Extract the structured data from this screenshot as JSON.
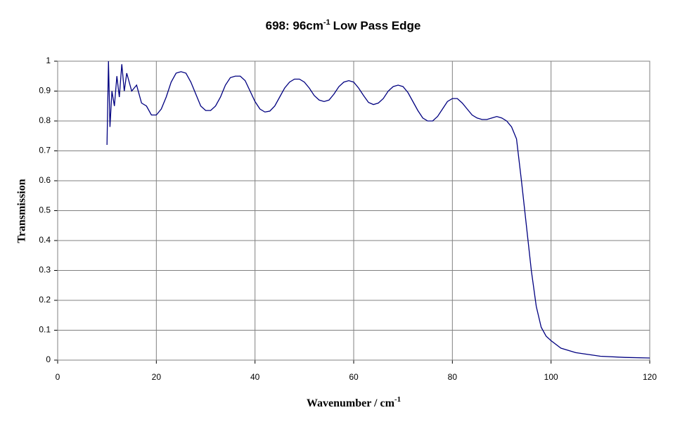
{
  "chart_data": {
    "type": "line",
    "title": [
      "698: 96cm",
      "-1",
      "Low Pass Edge"
    ],
    "x_label": [
      "Wavenumber / cm",
      "-1"
    ],
    "y_label": "Transmission",
    "xlim": [
      0,
      120
    ],
    "xticks": [
      0,
      20,
      40,
      60,
      80,
      100,
      120
    ],
    "ylim": [
      0,
      1
    ],
    "yticks": [
      0,
      0.1,
      0.2,
      0.3,
      0.4,
      0.5,
      0.6,
      0.7,
      0.8,
      0.9,
      1
    ],
    "grid": true,
    "x": [
      10,
      10.3,
      10.6,
      11,
      11.5,
      12,
      12.5,
      13,
      13.5,
      14,
      15,
      16,
      17,
      18,
      19,
      20,
      21,
      22,
      23,
      24,
      25,
      26,
      27,
      28,
      29,
      30,
      31,
      32,
      33,
      34,
      35,
      36,
      37,
      38,
      39,
      40,
      41,
      42,
      43,
      44,
      45,
      46,
      47,
      48,
      49,
      50,
      51,
      52,
      53,
      54,
      55,
      56,
      57,
      58,
      59,
      60,
      61,
      62,
      63,
      64,
      65,
      66,
      67,
      68,
      69,
      70,
      71,
      72,
      73,
      74,
      75,
      76,
      77,
      78,
      79,
      80,
      81,
      82,
      83,
      84,
      85,
      86,
      87,
      88,
      89,
      90,
      91,
      92,
      93,
      94,
      95,
      96,
      97,
      98,
      99,
      100,
      102,
      105,
      110,
      115,
      120
    ],
    "series": [
      {
        "color": "#000080",
        "values": [
          0.72,
          1.0,
          0.78,
          0.9,
          0.85,
          0.95,
          0.88,
          0.99,
          0.9,
          0.96,
          0.9,
          0.92,
          0.86,
          0.85,
          0.82,
          0.82,
          0.84,
          0.88,
          0.93,
          0.96,
          0.965,
          0.96,
          0.93,
          0.89,
          0.85,
          0.835,
          0.835,
          0.85,
          0.88,
          0.92,
          0.945,
          0.95,
          0.95,
          0.935,
          0.9,
          0.865,
          0.84,
          0.83,
          0.833,
          0.85,
          0.88,
          0.91,
          0.93,
          0.94,
          0.94,
          0.93,
          0.91,
          0.885,
          0.87,
          0.865,
          0.87,
          0.89,
          0.915,
          0.93,
          0.935,
          0.93,
          0.91,
          0.885,
          0.862,
          0.855,
          0.86,
          0.875,
          0.9,
          0.915,
          0.92,
          0.915,
          0.895,
          0.865,
          0.835,
          0.81,
          0.8,
          0.8,
          0.815,
          0.84,
          0.865,
          0.875,
          0.875,
          0.86,
          0.84,
          0.82,
          0.81,
          0.805,
          0.805,
          0.81,
          0.815,
          0.81,
          0.8,
          0.78,
          0.74,
          0.6,
          0.45,
          0.3,
          0.18,
          0.11,
          0.08,
          0.065,
          0.04,
          0.025,
          0.013,
          0.009,
          0.007
        ]
      }
    ]
  }
}
